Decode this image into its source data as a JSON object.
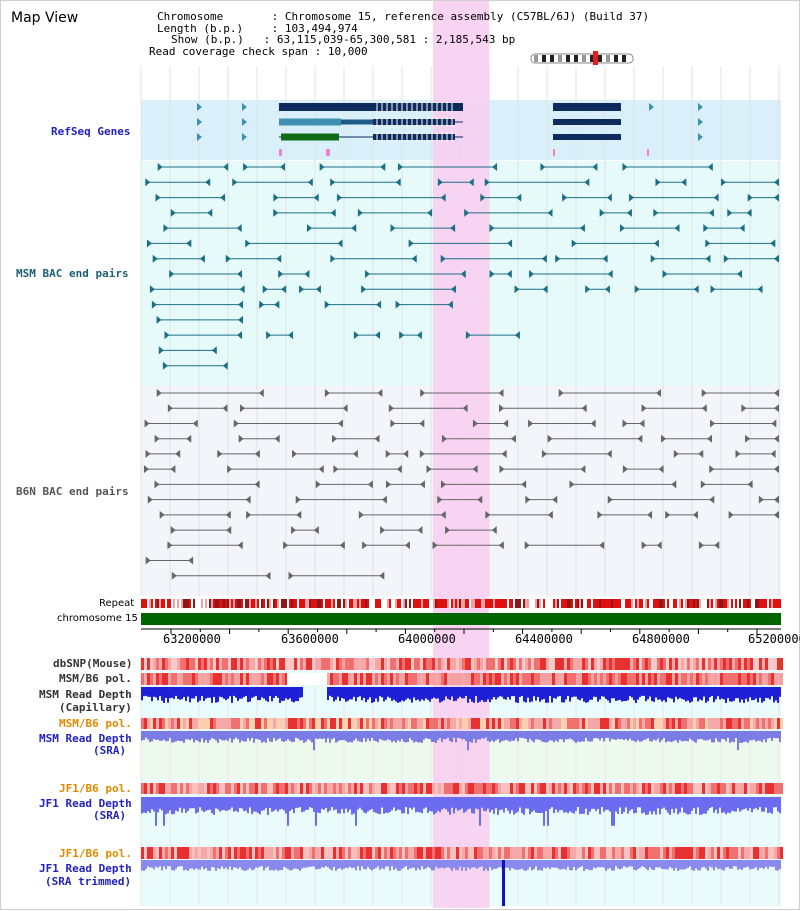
{
  "header": {
    "view_title": "Map View",
    "chromosome_label": "Chromosome",
    "chromosome_value": "Chromosome 15, reference assembly (C57BL/6J) (Build 37)",
    "length_label": "Length (b.p.)",
    "length_value": "103,494,974",
    "show_label": "Show (b.p.)",
    "show_value": "63,115,039-65,300,581 : 2,185,543 bp",
    "coverage_label": "Read coverage check span",
    "coverage_value": "10,000"
  },
  "tracks": {
    "refseq": "RefSeq Genes",
    "msm_bac": "MSM BAC end pairs",
    "b6n_bac": "B6N BAC end pairs",
    "repeat": "Repeat",
    "chromosome": "chromosome 15",
    "dbsnp": "dbSNP(Mouse)",
    "msm_b6_pol_1": "MSM/B6 pol.",
    "msm_depth_cap_1": "MSM Read Depth",
    "msm_depth_cap_2": "(Capillary)",
    "msm_b6_pol_2": "MSM/B6 pol.",
    "msm_depth_sra_1": "MSM Read Depth",
    "msm_depth_sra_2": "(SRA)",
    "jf1_b6_pol_1": "JF1/B6 pol.",
    "jf1_depth_sra_1": "JF1 Read Depth",
    "jf1_depth_sra_2": "(SRA)",
    "jf1_b6_pol_2": "JF1/B6 pol.",
    "jf1_depth_trim_1": "JF1 Read Depth",
    "jf1_depth_trim_2": "(SRA trimmed)"
  },
  "axis": {
    "ticks": [
      "63200000",
      "63600000",
      "64000000",
      "64400000",
      "64800000",
      "65200000"
    ]
  },
  "colors": {
    "refseq_bg": "#d9f0fb",
    "msm_bg": "#e6fafa",
    "b6n_bg": "#f4f4fb",
    "highlight": "#f8cdf0",
    "gene_dark": "#0d2b5c",
    "gene_mid": "#3f8fb0",
    "gene_green": "#0f6b14",
    "msm_line": "#1d6f86",
    "b6n_line": "#666666",
    "chrom_bar": "#006400",
    "depth_dark": "#1f1fd8",
    "depth_light": "#6c6cf0"
  }
}
